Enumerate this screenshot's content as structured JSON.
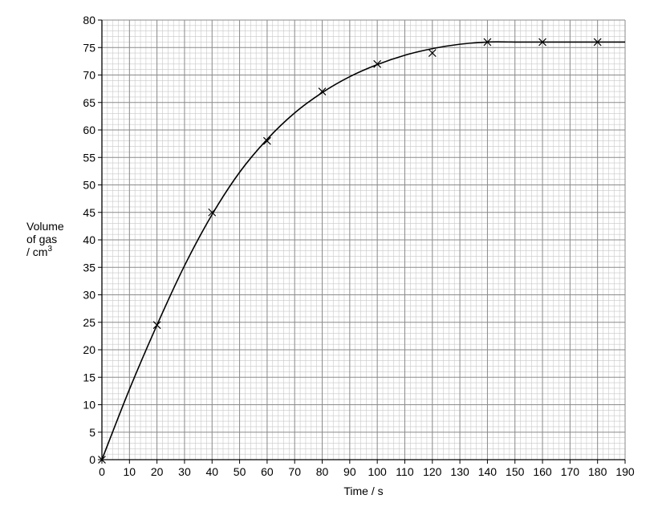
{
  "chart_data": {
    "type": "scatter",
    "title": "",
    "xlabel": "Time / s",
    "ylabel_lines": [
      "Volume",
      "of gas",
      "/ cm"
    ],
    "ylabel_superscript": "3",
    "xlim": [
      0,
      190
    ],
    "ylim": [
      0,
      80
    ],
    "x_ticks": [
      0,
      10,
      20,
      30,
      40,
      50,
      60,
      70,
      80,
      90,
      100,
      110,
      120,
      130,
      140,
      150,
      160,
      170,
      180,
      190
    ],
    "y_ticks": [
      0,
      5,
      10,
      15,
      20,
      25,
      30,
      35,
      40,
      45,
      50,
      55,
      60,
      65,
      70,
      75,
      80
    ],
    "grid": "on",
    "grid_minor_per_major_x": 5,
    "grid_minor_per_major_y": 5,
    "series": [
      {
        "marker": "x",
        "x": [
          0,
          20,
          40,
          60,
          80,
          100,
          120,
          140,
          160,
          180
        ],
        "y": [
          0,
          24.5,
          45,
          58,
          67,
          72,
          74,
          76,
          76,
          76
        ]
      }
    ],
    "curve_of_best_fit": {
      "x": [
        0,
        10,
        20,
        30,
        40,
        50,
        60,
        70,
        80,
        90,
        100,
        110,
        120,
        130,
        140,
        150,
        160,
        170,
        180,
        190
      ],
      "y": [
        0,
        12.8,
        24.5,
        35.3,
        44.6,
        52.3,
        58.3,
        63.1,
        66.8,
        69.7,
        71.9,
        73.6,
        74.8,
        75.6,
        76,
        76,
        76,
        76,
        76,
        76
      ]
    },
    "colors": {
      "grid_major": "#8a8a8a",
      "grid_minor": "#c8c8c8",
      "line": "#000000",
      "marker": "#000000"
    }
  }
}
